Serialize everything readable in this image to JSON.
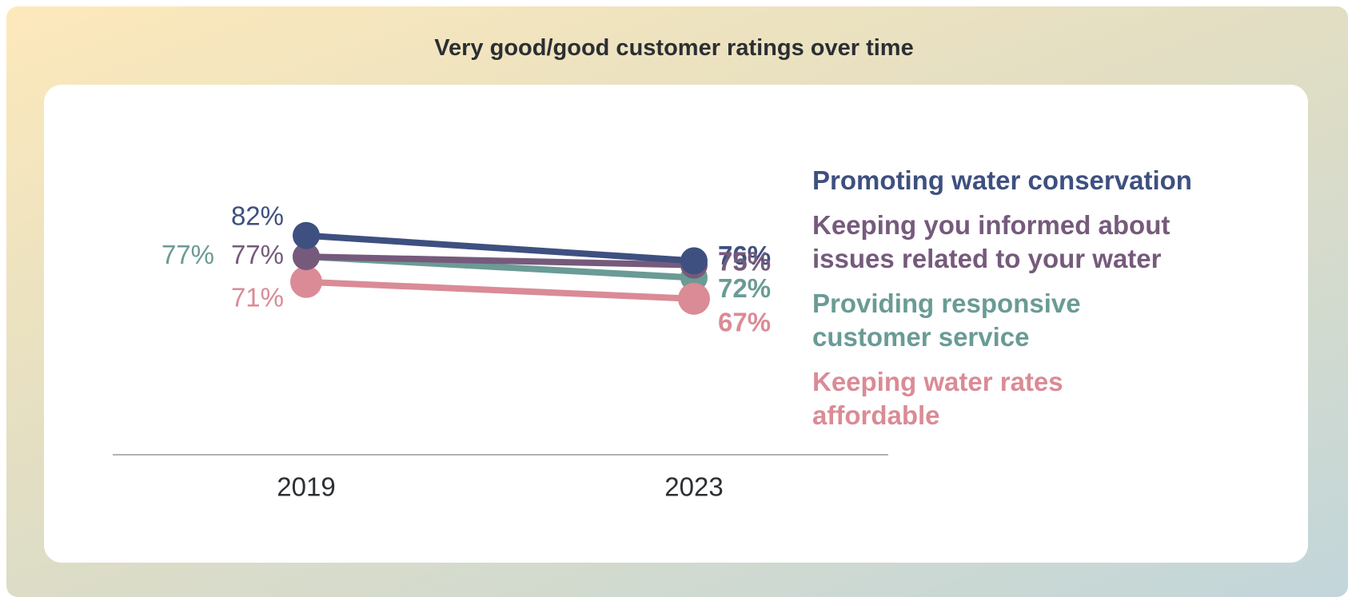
{
  "chart_data": {
    "type": "line",
    "title": "Very good/good customer ratings over time",
    "x": [
      "2019",
      "2023"
    ],
    "ylim": [
      30,
      110
    ],
    "series": [
      {
        "name": "Promoting water conservation",
        "color": "#3e5080",
        "values": [
          82,
          76
        ],
        "value_labels": [
          "82%",
          "76%"
        ]
      },
      {
        "name": "Keeping you informed about issues related to your water",
        "color": "#765a7c",
        "values": [
          77,
          75
        ],
        "value_labels": [
          "77%",
          "75%"
        ]
      },
      {
        "name": "Providing responsive customer service",
        "color": "#6a9b95",
        "values": [
          77,
          72
        ],
        "value_labels": [
          "77%",
          "72%"
        ]
      },
      {
        "name": "Keeping water rates affordable",
        "color": "#da8b96",
        "values": [
          71,
          67
        ],
        "value_labels": [
          "71%",
          "67%"
        ]
      }
    ]
  }
}
